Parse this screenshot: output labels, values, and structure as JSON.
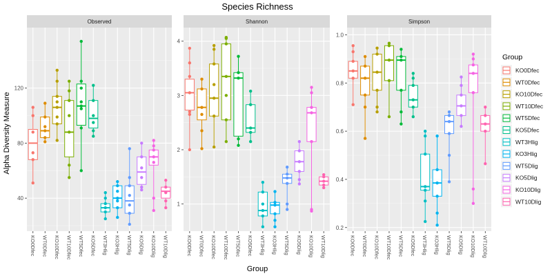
{
  "chart_data": {
    "type": "box",
    "title": "Species Richness",
    "xlabel": "Group",
    "ylabel": "Alpha Diversity Measure",
    "legend": {
      "title": "Group",
      "position": "right"
    },
    "groups": [
      "KO0Dfec",
      "WT0Dfec",
      "KO10Dfec",
      "WT10Dfec",
      "WT5Dfec",
      "KO5Dfec",
      "WT3Hlig",
      "KO3Hlig",
      "WT5Dlig",
      "KO5Dlig",
      "KO10Dlig",
      "WT10Dlig"
    ],
    "colors": [
      "#F8766D",
      "#DE8C00",
      "#B79F00",
      "#7CAE00",
      "#00BA38",
      "#00C08B",
      "#00BFC4",
      "#00B4F0",
      "#619CFF",
      "#C77CFF",
      "#F564E3",
      "#FF64B0"
    ],
    "panels": [
      {
        "name": "Observed",
        "ylim": [
          16,
          164
        ],
        "yticks": [
          40,
          80,
          120
        ],
        "series": [
          {
            "group": "KO0Dfec",
            "q1": 68,
            "median": 80,
            "q3": 90,
            "min": 51,
            "max": 106,
            "points": [
              51,
              68,
              73,
              88,
              100,
              106
            ]
          },
          {
            "group": "WT0Dfec",
            "q1": 84,
            "median": 89,
            "q3": 99,
            "min": 81,
            "max": 109,
            "points": [
              81,
              84,
              89,
              92,
              99,
              109
            ]
          },
          {
            "group": "KO10Dfec",
            "q1": 94,
            "median": 106,
            "q3": 114,
            "min": 82,
            "max": 133,
            "points": [
              82,
              94,
              99,
              106,
              110,
              114,
              125,
              133
            ]
          },
          {
            "group": "WT10Dfec",
            "q1": 70,
            "median": 88,
            "q3": 111,
            "min": 55,
            "max": 125,
            "points": [
              55,
              64,
              88,
              100,
              111,
              118,
              125
            ]
          },
          {
            "group": "WT5Dfec",
            "q1": 93,
            "median": 107,
            "q3": 123,
            "min": 60,
            "max": 154,
            "points": [
              60,
              91,
              105,
              107,
              110,
              120,
              125,
              154
            ]
          },
          {
            "group": "KO5Dfec",
            "q1": 91,
            "median": 98,
            "q3": 111,
            "min": 85,
            "max": 122,
            "points": [
              85,
              89,
              95,
              100,
              111,
              122
            ]
          },
          {
            "group": "WT3Hlig",
            "q1": 30,
            "median": 33,
            "q3": 36,
            "min": 25,
            "max": 44,
            "points": [
              25,
              30,
              33,
              36,
              40,
              44
            ]
          },
          {
            "group": "KO3Hlig",
            "q1": 33,
            "median": 40,
            "q3": 49,
            "min": 26,
            "max": 52,
            "points": [
              26,
              33,
              38,
              40,
              45,
              49,
              52
            ]
          },
          {
            "group": "WT5Dlig",
            "q1": 29,
            "median": 38,
            "q3": 49,
            "min": 21,
            "max": 76,
            "points": [
              21,
              29,
              35,
              42,
              49,
              55,
              76
            ]
          },
          {
            "group": "KO5Dlig",
            "q1": 50,
            "median": 59,
            "q3": 70,
            "min": 46,
            "max": 80,
            "points": [
              46,
              48,
              55,
              62,
              70,
              80
            ]
          },
          {
            "group": "KO10Dlig",
            "q1": 64,
            "median": 70,
            "q3": 75,
            "min": 31,
            "max": 82,
            "points": [
              31,
              40,
              66,
              70,
              75,
              78,
              82
            ]
          },
          {
            "group": "WT10Dlig",
            "q1": 40,
            "median": 45,
            "q3": 48,
            "min": 33,
            "max": 53,
            "points": [
              33,
              38,
              44,
              48,
              53
            ]
          }
        ]
      },
      {
        "name": "Shannon",
        "ylim": [
          0.5,
          4.25
        ],
        "yticks": [
          1,
          2,
          3,
          4
        ],
        "series": [
          {
            "group": "KO0Dfec",
            "q1": 2.73,
            "median": 3.05,
            "q3": 3.3,
            "min": 2.0,
            "max": 3.87,
            "points": [
              2.0,
              2.65,
              2.7,
              3.05,
              3.35,
              3.6,
              3.87
            ]
          },
          {
            "group": "WT0Dfec",
            "q1": 2.55,
            "median": 2.78,
            "q3": 3.12,
            "min": 2.02,
            "max": 3.3,
            "points": [
              2.02,
              2.35,
              2.65,
              2.78,
              3.12,
              3.3
            ]
          },
          {
            "group": "KO10Dfec",
            "q1": 2.62,
            "median": 2.95,
            "q3": 3.58,
            "min": 2.05,
            "max": 3.92,
            "points": [
              2.05,
              2.62,
              2.95,
              3.2,
              3.58,
              3.85,
              3.92
            ]
          },
          {
            "group": "WT10Dfec",
            "q1": 2.55,
            "median": 3.35,
            "q3": 3.95,
            "min": 2.15,
            "max": 4.07,
            "points": [
              2.15,
              2.55,
              3.0,
              3.35,
              3.95,
              4.05,
              4.07
            ]
          },
          {
            "group": "WT5Dfec",
            "q1": 2.25,
            "median": 3.32,
            "q3": 3.42,
            "min": 2.08,
            "max": 3.72,
            "points": [
              2.08,
              2.2,
              3.32,
              3.42,
              3.72
            ]
          },
          {
            "group": "KO5Dfec",
            "q1": 2.32,
            "median": 2.4,
            "q3": 2.83,
            "min": 2.15,
            "max": 3.08,
            "points": [
              2.15,
              2.32,
              2.4,
              2.83,
              3.08
            ]
          },
          {
            "group": "WT3Hlig",
            "q1": 0.78,
            "median": 0.88,
            "q3": 1.22,
            "min": 0.58,
            "max": 1.4,
            "points": [
              0.58,
              0.78,
              0.88,
              1.0,
              1.22,
              1.4
            ]
          },
          {
            "group": "KO3Hlig",
            "q1": 0.82,
            "median": 0.98,
            "q3": 1.03,
            "min": 0.58,
            "max": 1.23,
            "points": [
              0.58,
              0.7,
              0.82,
              0.98,
              1.03,
              1.23
            ]
          },
          {
            "group": "WT5Dlig",
            "q1": 1.38,
            "median": 1.48,
            "q3": 1.55,
            "min": 0.9,
            "max": 1.68,
            "points": [
              0.9,
              1.0,
              1.38,
              1.48,
              1.55,
              1.68
            ]
          },
          {
            "group": "KO5Dlig",
            "q1": 1.6,
            "median": 1.78,
            "q3": 1.98,
            "min": 1.37,
            "max": 2.15,
            "points": [
              1.37,
              1.45,
              1.6,
              1.78,
              1.98,
              2.15
            ]
          },
          {
            "group": "KO10Dlig",
            "q1": 2.15,
            "median": 2.68,
            "q3": 2.78,
            "min": 0.87,
            "max": 3.15,
            "points": [
              0.87,
              0.9,
              2.15,
              2.68,
              2.78,
              3.05,
              3.15
            ]
          },
          {
            "group": "WT10Dlig",
            "q1": 1.35,
            "median": 1.42,
            "q3": 1.5,
            "min": 1.3,
            "max": 1.54,
            "points": [
              1.3,
              1.35,
              1.42,
              1.5,
              1.54
            ]
          }
        ]
      },
      {
        "name": "Simpson",
        "ylim": [
          0.185,
          1.03
        ],
        "yticks": [
          0.2,
          0.4,
          0.6,
          0.8,
          1.0
        ],
        "series": [
          {
            "group": "KO0Dfec",
            "q1": 0.82,
            "median": 0.85,
            "q3": 0.89,
            "min": 0.71,
            "max": 0.955,
            "points": [
              0.71,
              0.82,
              0.85,
              0.89,
              0.93,
              0.955
            ]
          },
          {
            "group": "WT0Dfec",
            "q1": 0.75,
            "median": 0.82,
            "q3": 0.87,
            "min": 0.57,
            "max": 0.91,
            "points": [
              0.57,
              0.7,
              0.75,
              0.82,
              0.87,
              0.91
            ]
          },
          {
            "group": "KO10Dfec",
            "q1": 0.77,
            "median": 0.845,
            "q3": 0.92,
            "min": 0.68,
            "max": 0.945,
            "points": [
              0.68,
              0.7,
              0.77,
              0.845,
              0.92,
              0.945
            ]
          },
          {
            "group": "WT10Dfec",
            "q1": 0.81,
            "median": 0.895,
            "q3": 0.955,
            "min": 0.66,
            "max": 0.965,
            "points": [
              0.66,
              0.81,
              0.895,
              0.955,
              0.965
            ]
          },
          {
            "group": "WT5Dfec",
            "q1": 0.77,
            "median": 0.895,
            "q3": 0.91,
            "min": 0.63,
            "max": 0.94,
            "points": [
              0.63,
              0.68,
              0.77,
              0.895,
              0.91,
              0.94
            ]
          },
          {
            "group": "KO5Dfec",
            "q1": 0.7,
            "median": 0.73,
            "q3": 0.79,
            "min": 0.66,
            "max": 0.84,
            "points": [
              0.66,
              0.7,
              0.73,
              0.79,
              0.82,
              0.84
            ]
          },
          {
            "group": "WT3Hlig",
            "q1": 0.355,
            "median": 0.37,
            "q3": 0.505,
            "min": 0.225,
            "max": 0.6,
            "points": [
              0.225,
              0.31,
              0.355,
              0.37,
              0.505,
              0.58,
              0.6
            ]
          },
          {
            "group": "KO3Hlig",
            "q1": 0.33,
            "median": 0.385,
            "q3": 0.44,
            "min": 0.21,
            "max": 0.58,
            "points": [
              0.21,
              0.26,
              0.33,
              0.385,
              0.44,
              0.58
            ]
          },
          {
            "group": "WT5Dlig",
            "q1": 0.59,
            "median": 0.64,
            "q3": 0.665,
            "min": 0.39,
            "max": 0.68,
            "points": [
              0.39,
              0.5,
              0.59,
              0.64,
              0.665,
              0.68
            ]
          },
          {
            "group": "KO5Dlig",
            "q1": 0.665,
            "median": 0.705,
            "q3": 0.75,
            "min": 0.62,
            "max": 0.825,
            "points": [
              0.62,
              0.665,
              0.705,
              0.75,
              0.79,
              0.825
            ]
          },
          {
            "group": "KO10Dlig",
            "q1": 0.76,
            "median": 0.84,
            "q3": 0.875,
            "min": 0.3,
            "max": 0.92,
            "points": [
              0.3,
              0.36,
              0.76,
              0.84,
              0.875,
              0.9,
              0.92
            ]
          },
          {
            "group": "WT10Dlig",
            "q1": 0.6,
            "median": 0.63,
            "q3": 0.665,
            "min": 0.465,
            "max": 0.7,
            "points": [
              0.465,
              0.6,
              0.63,
              0.665,
              0.7
            ]
          }
        ]
      }
    ]
  }
}
